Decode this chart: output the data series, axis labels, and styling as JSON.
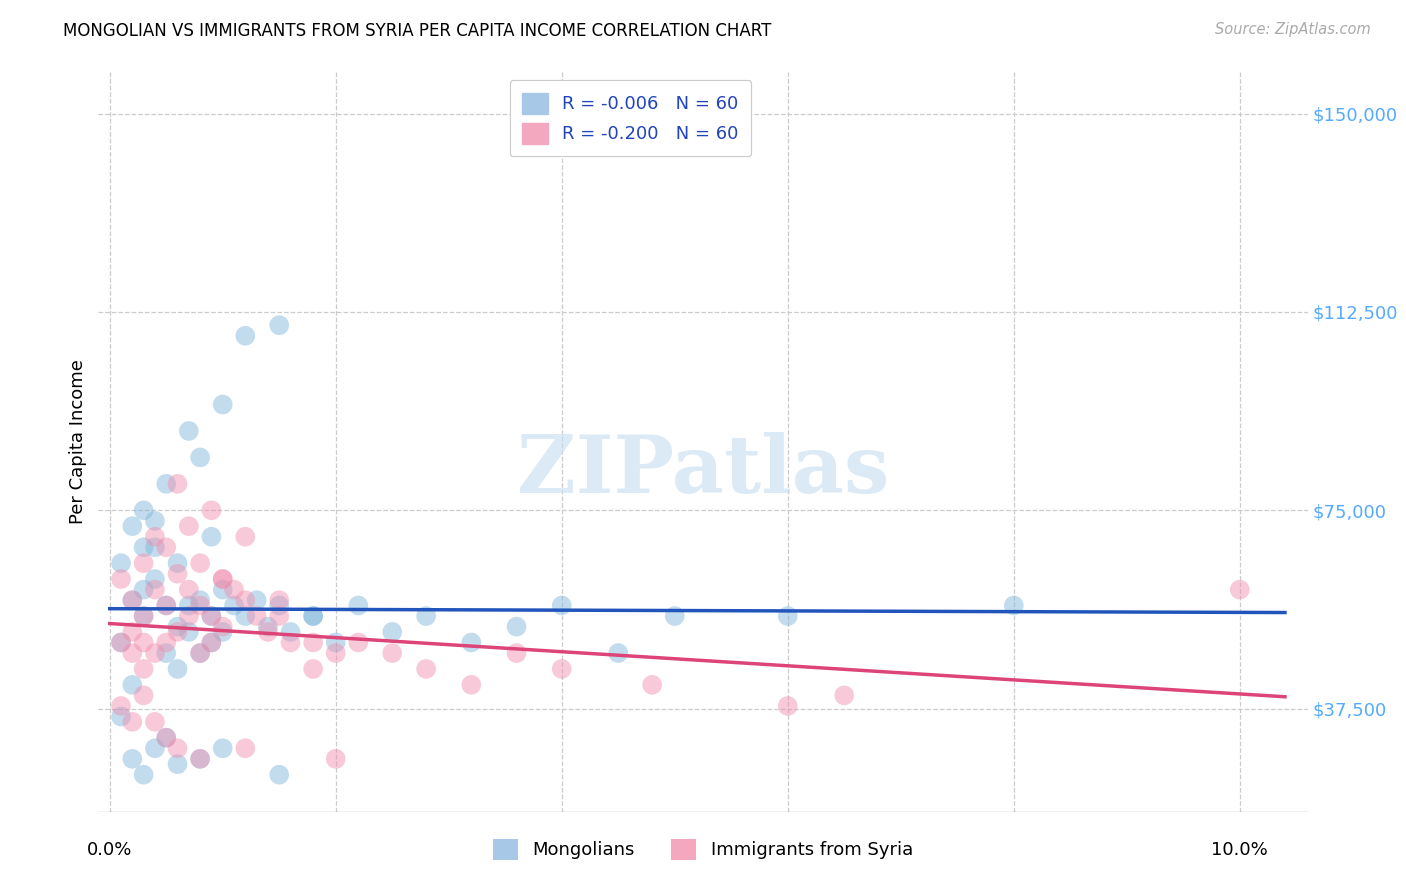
{
  "title": "MONGOLIAN VS IMMIGRANTS FROM SYRIA PER CAPITA INCOME CORRELATION CHART",
  "source": "Source: ZipAtlas.com",
  "ylabel": "Per Capita Income",
  "y_min": 18000,
  "y_max": 158000,
  "x_min": -0.001,
  "x_max": 0.106,
  "watermark": "ZIPatlas",
  "mongolian_color": "#7ab3d9",
  "syria_color": "#f08aab",
  "mongolian_line_color": "#2255bb",
  "syria_line_color": "#dd4477",
  "mongolian_R": -0.006,
  "syria_R": -0.2,
  "N": 60,
  "ytick_vals": [
    37500,
    75000,
    112500,
    150000
  ],
  "scatter_size": 200,
  "scatter_alpha": 0.45,
  "mongolian_x": [
    0.001,
    0.001,
    0.002,
    0.002,
    0.002,
    0.003,
    0.003,
    0.003,
    0.004,
    0.004,
    0.005,
    0.005,
    0.006,
    0.006,
    0.007,
    0.007,
    0.008,
    0.008,
    0.009,
    0.009,
    0.01,
    0.01,
    0.011,
    0.012,
    0.013,
    0.014,
    0.015,
    0.016,
    0.018,
    0.02,
    0.003,
    0.004,
    0.005,
    0.006,
    0.007,
    0.008,
    0.009,
    0.01,
    0.012,
    0.015,
    0.018,
    0.022,
    0.025,
    0.028,
    0.032,
    0.036,
    0.04,
    0.045,
    0.05,
    0.06,
    0.001,
    0.002,
    0.003,
    0.004,
    0.005,
    0.006,
    0.008,
    0.01,
    0.015,
    0.08
  ],
  "mongolian_y": [
    65000,
    50000,
    72000,
    58000,
    42000,
    68000,
    55000,
    60000,
    73000,
    62000,
    57000,
    48000,
    53000,
    45000,
    57000,
    52000,
    58000,
    48000,
    55000,
    50000,
    60000,
    52000,
    57000,
    55000,
    58000,
    53000,
    57000,
    52000,
    55000,
    50000,
    75000,
    68000,
    80000,
    65000,
    90000,
    85000,
    70000,
    95000,
    108000,
    110000,
    55000,
    57000,
    52000,
    55000,
    50000,
    53000,
    57000,
    48000,
    55000,
    55000,
    36000,
    28000,
    25000,
    30000,
    32000,
    27000,
    28000,
    30000,
    25000,
    57000
  ],
  "syria_x": [
    0.001,
    0.001,
    0.002,
    0.002,
    0.002,
    0.003,
    0.003,
    0.003,
    0.004,
    0.004,
    0.005,
    0.005,
    0.006,
    0.006,
    0.007,
    0.007,
    0.008,
    0.008,
    0.009,
    0.009,
    0.01,
    0.01,
    0.011,
    0.012,
    0.013,
    0.014,
    0.015,
    0.016,
    0.018,
    0.02,
    0.003,
    0.004,
    0.005,
    0.006,
    0.007,
    0.008,
    0.009,
    0.01,
    0.012,
    0.015,
    0.018,
    0.022,
    0.025,
    0.028,
    0.032,
    0.036,
    0.04,
    0.048,
    0.06,
    0.065,
    0.001,
    0.002,
    0.003,
    0.004,
    0.005,
    0.006,
    0.008,
    0.012,
    0.02,
    0.1
  ],
  "syria_y": [
    62000,
    50000,
    58000,
    48000,
    52000,
    55000,
    45000,
    50000,
    60000,
    48000,
    57000,
    50000,
    63000,
    52000,
    60000,
    55000,
    57000,
    48000,
    55000,
    50000,
    62000,
    53000,
    60000,
    58000,
    55000,
    52000,
    58000,
    50000,
    50000,
    48000,
    65000,
    70000,
    68000,
    80000,
    72000,
    65000,
    75000,
    62000,
    70000,
    55000,
    45000,
    50000,
    48000,
    45000,
    42000,
    48000,
    45000,
    42000,
    38000,
    40000,
    38000,
    35000,
    40000,
    35000,
    32000,
    30000,
    28000,
    30000,
    28000,
    60000
  ]
}
